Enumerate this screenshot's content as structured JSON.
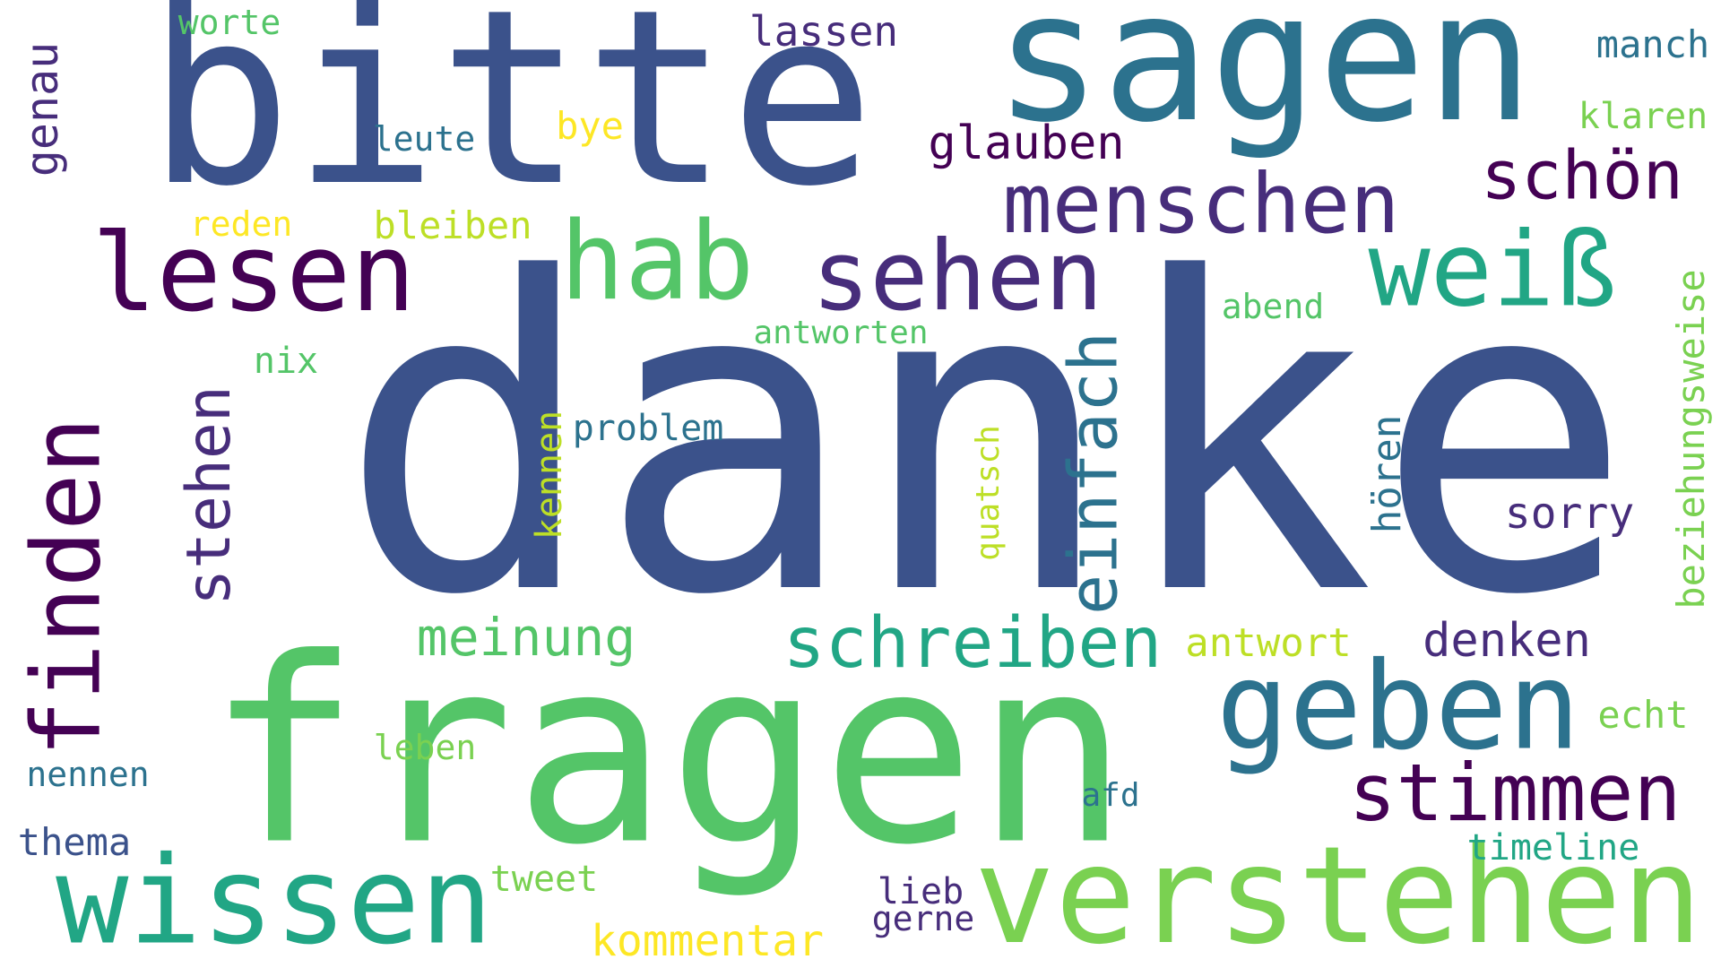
{
  "words": [
    {
      "text": "danke",
      "color": "#3b528b",
      "vertical": false
    },
    {
      "text": "fragen",
      "color": "#54c568",
      "vertical": false
    },
    {
      "text": "bitte",
      "color": "#3b528b",
      "vertical": false
    },
    {
      "text": "sagen",
      "color": "#2c728e",
      "vertical": false
    },
    {
      "text": "verstehen",
      "color": "#7ad151",
      "vertical": false
    },
    {
      "text": "wissen",
      "color": "#21a685",
      "vertical": false
    },
    {
      "text": "geben",
      "color": "#2c728e",
      "vertical": false
    },
    {
      "text": "lesen",
      "color": "#440154",
      "vertical": false
    },
    {
      "text": "hab",
      "color": "#54c568",
      "vertical": false
    },
    {
      "text": "sehen",
      "color": "#472d7b",
      "vertical": false
    },
    {
      "text": "weiß",
      "color": "#21a685",
      "vertical": false
    },
    {
      "text": "finden",
      "color": "#440154",
      "vertical": true
    },
    {
      "text": "menschen",
      "color": "#472d7b",
      "vertical": false
    },
    {
      "text": "stimmen",
      "color": "#440154",
      "vertical": false
    },
    {
      "text": "schreiben",
      "color": "#21a685",
      "vertical": false
    },
    {
      "text": "einfach",
      "color": "#2c728e",
      "vertical": true
    },
    {
      "text": "schön",
      "color": "#440154",
      "vertical": false
    },
    {
      "text": "stehen",
      "color": "#472d7b",
      "vertical": true
    },
    {
      "text": "meinung",
      "color": "#54c568",
      "vertical": false
    },
    {
      "text": "denken",
      "color": "#472d7b",
      "vertical": false
    },
    {
      "text": "glauben",
      "color": "#440154",
      "vertical": false
    },
    {
      "text": "genau",
      "color": "#472d7b",
      "vertical": true
    },
    {
      "text": "kommentar",
      "color": "#fde725",
      "vertical": false
    },
    {
      "text": "sorry",
      "color": "#472d7b",
      "vertical": false
    },
    {
      "text": "lassen",
      "color": "#472d7b",
      "vertical": false
    },
    {
      "text": "beziehungsweise",
      "color": "#7ad151",
      "vertical": true
    },
    {
      "text": "antwort",
      "color": "#bddf26",
      "vertical": false
    },
    {
      "text": "manch",
      "color": "#2c728e",
      "vertical": false
    },
    {
      "text": "thema",
      "color": "#3b528b",
      "vertical": false
    },
    {
      "text": "timeline",
      "color": "#21a685",
      "vertical": false
    },
    {
      "text": "klaren",
      "color": "#7ad151",
      "vertical": false
    },
    {
      "text": "hören",
      "color": "#2c728e",
      "vertical": true
    },
    {
      "text": "echt",
      "color": "#7ad151",
      "vertical": false
    },
    {
      "text": "bleiben",
      "color": "#bddf26",
      "vertical": false
    },
    {
      "text": "problem",
      "color": "#2c728e",
      "vertical": false
    },
    {
      "text": "nennen",
      "color": "#2c728e",
      "vertical": false
    },
    {
      "text": "worte",
      "color": "#54c568",
      "vertical": false
    },
    {
      "text": "leute",
      "color": "#2c728e",
      "vertical": false
    },
    {
      "text": "antworten",
      "color": "#54c568",
      "vertical": false
    },
    {
      "text": "tweet",
      "color": "#7ad151",
      "vertical": false
    },
    {
      "text": "leben",
      "color": "#7ad151",
      "vertical": false
    },
    {
      "text": "abend",
      "color": "#54c568",
      "vertical": false
    },
    {
      "text": "quatsch",
      "color": "#bddf26",
      "vertical": true
    },
    {
      "text": "kennen",
      "color": "#bddf26",
      "vertical": true
    },
    {
      "text": "nix",
      "color": "#54c568",
      "vertical": false
    },
    {
      "text": "reden",
      "color": "#fde725",
      "vertical": false
    },
    {
      "text": "bye",
      "color": "#fde725",
      "vertical": false
    },
    {
      "text": "lieb",
      "color": "#472d7b",
      "vertical": false
    },
    {
      "text": "gerne",
      "color": "#472d7b",
      "vertical": false
    },
    {
      "text": "afd",
      "color": "#2c728e",
      "vertical": false
    }
  ]
}
